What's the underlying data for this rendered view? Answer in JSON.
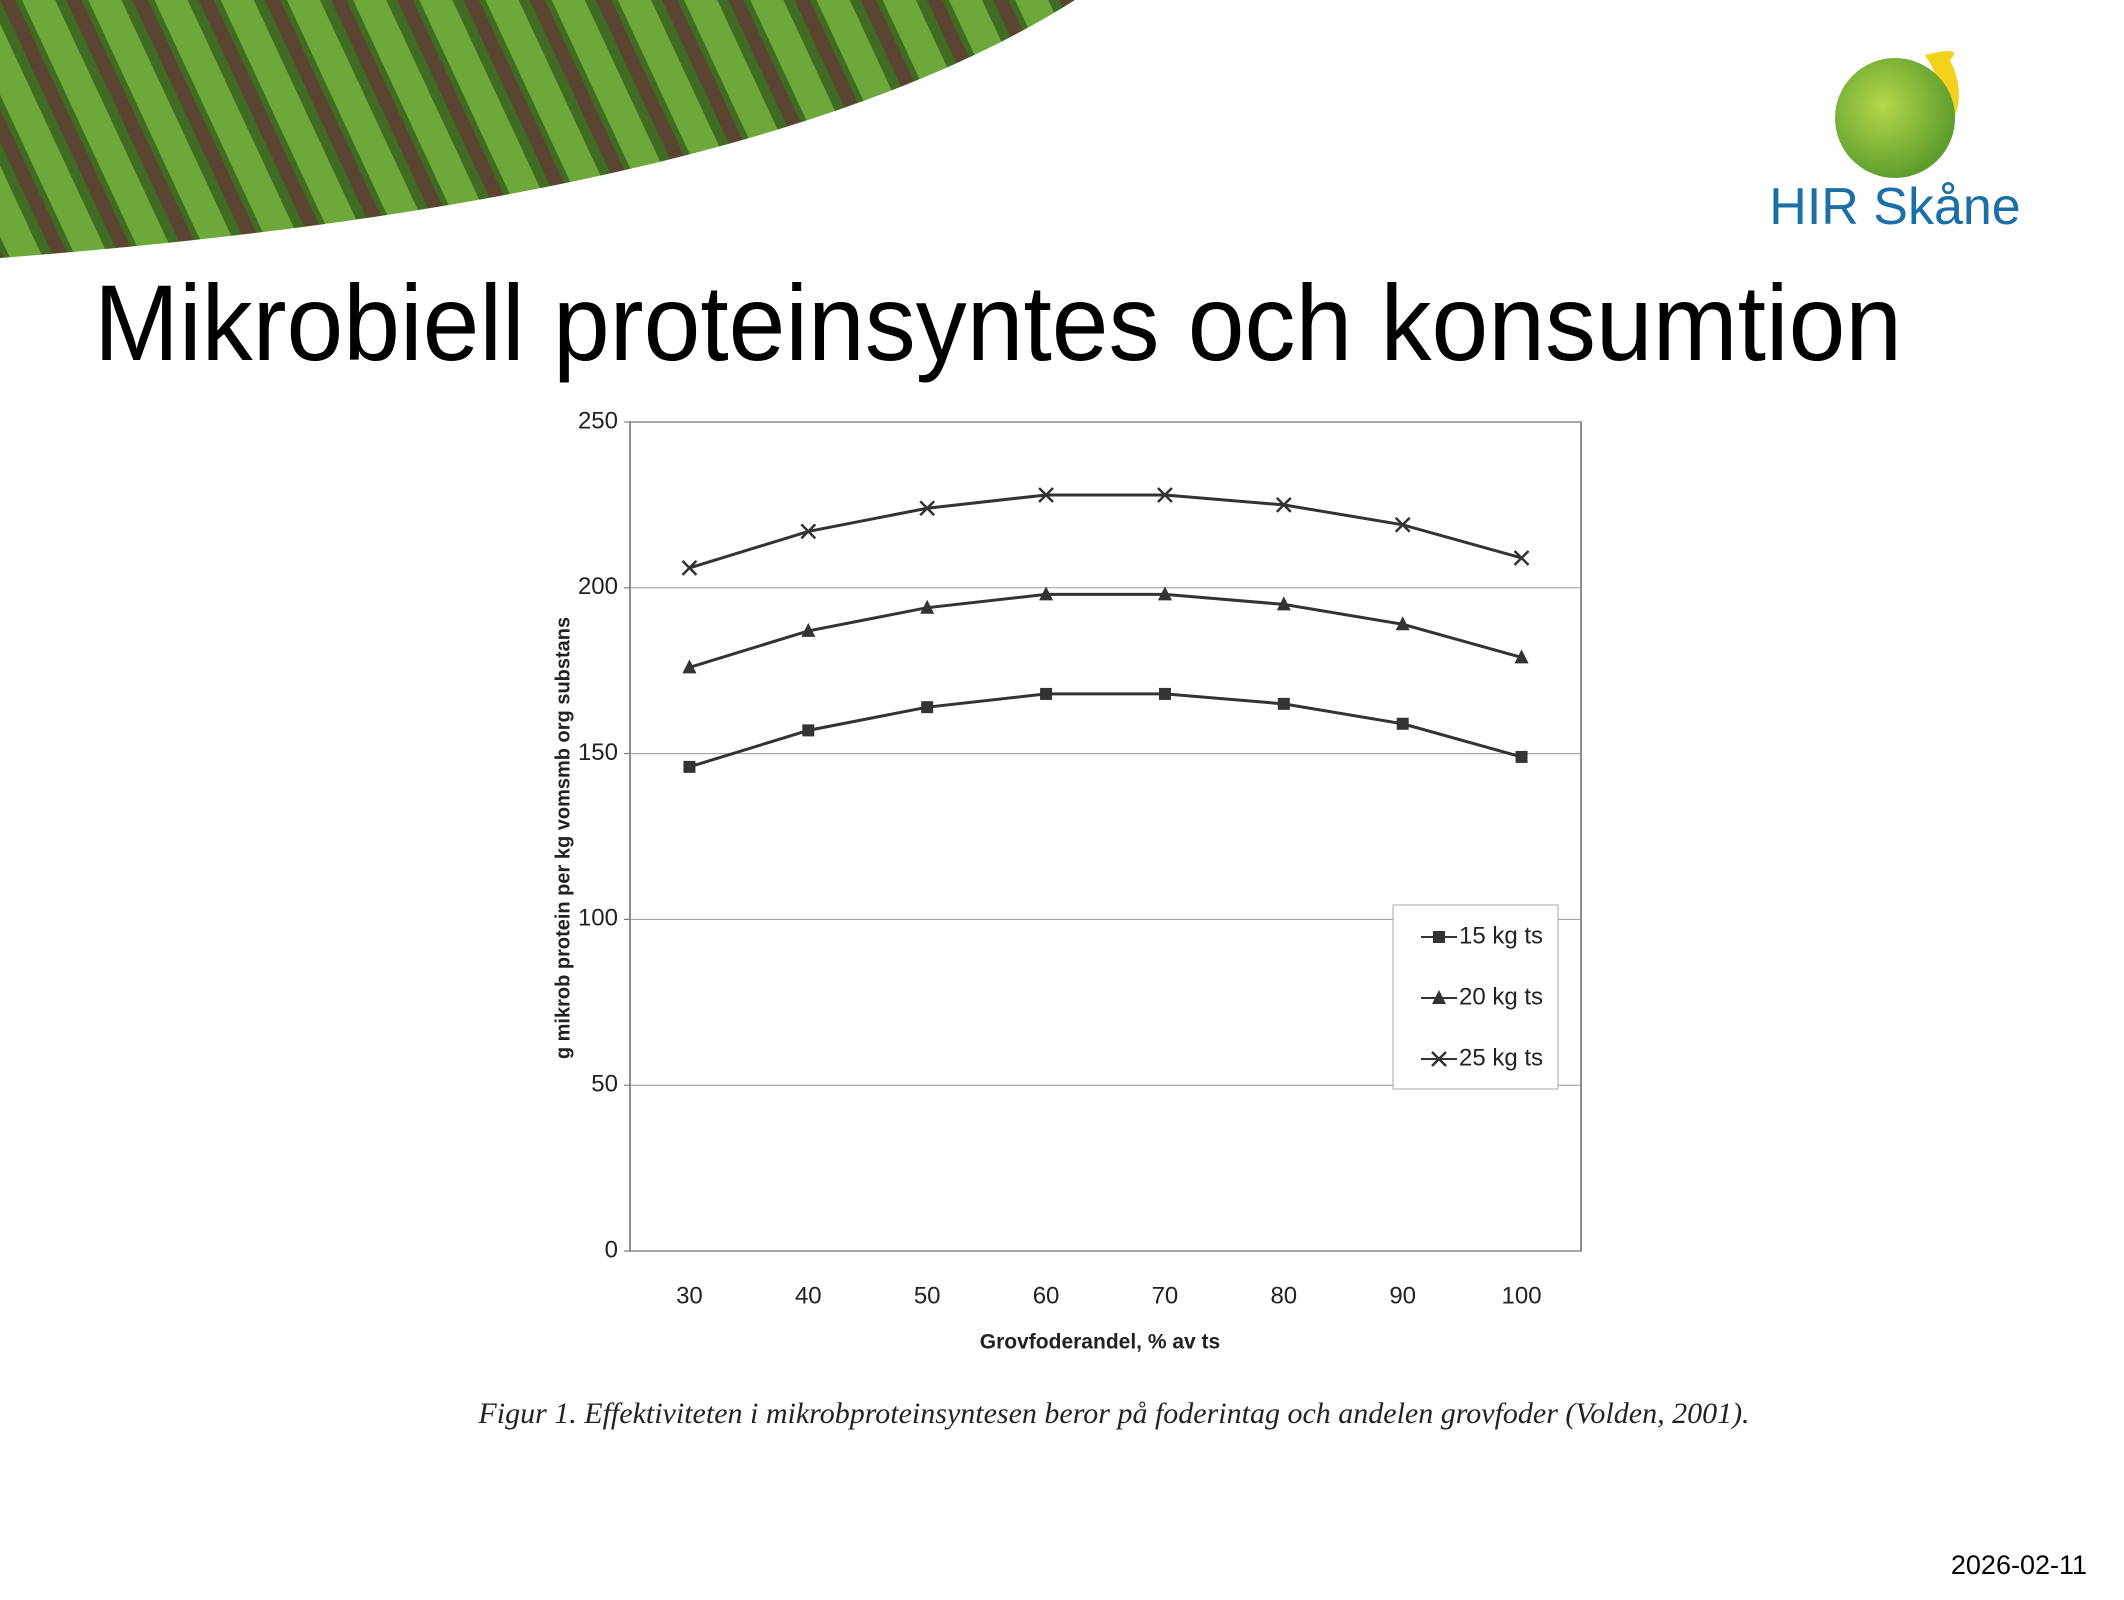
{
  "title": "Mikrobiell proteinsyntes och konsumtion",
  "logo": "HIR Skåne",
  "date": "2026-02-11",
  "chart_data": {
    "type": "line",
    "ylabel": "g mikrob protein per kg vomsmb org substans",
    "xlabel": "Grovfoderandel, % av ts",
    "caption": "Figur 1. Effektiviteten i mikrobproteinsyntesen beror på foderintag och andelen grovfoder (Volden, 2001).",
    "categories": [
      "30",
      "40",
      "50",
      "60",
      "70",
      "80",
      "90",
      "100"
    ],
    "series": [
      {
        "name": "15 kg ts",
        "marker": "square",
        "color": "#333333",
        "values": [
          146,
          157,
          164,
          168,
          168,
          165,
          159,
          149
        ]
      },
      {
        "name": "20 kg ts",
        "marker": "triangle",
        "color": "#333333",
        "values": [
          176,
          187,
          194,
          198,
          198,
          195,
          189,
          179
        ]
      },
      {
        "name": "25 kg ts",
        "marker": "x",
        "color": "#333333",
        "values": [
          206,
          217,
          224,
          228,
          228,
          225,
          219,
          209
        ]
      }
    ],
    "ylim": [
      0,
      250
    ],
    "yticks": [
      0,
      50,
      100,
      150,
      200,
      250
    ],
    "grid": true,
    "legend": "right"
  }
}
